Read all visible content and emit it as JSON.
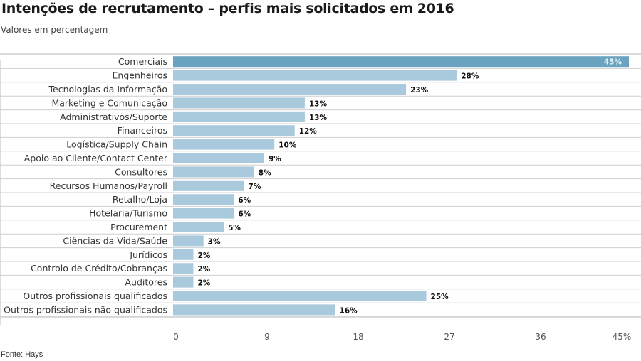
{
  "chart_data": {
    "type": "bar",
    "orientation": "horizontal",
    "title": "Intenções de recrutamento – perfis mais solicitados em 2016",
    "subtitle": "Valores em percentagem",
    "source": "Fonte: Hays",
    "xlabel": "",
    "ylabel": "",
    "xlim": [
      0,
      45
    ],
    "x_ticks": [
      0,
      9,
      18,
      27,
      36,
      45
    ],
    "x_tick_labels": [
      "0",
      "9",
      "18",
      "27",
      "36",
      "45%"
    ],
    "grid": false,
    "categories": [
      "Comerciais",
      "Engenheiros",
      "Tecnologias da Informação",
      "Marketing e Comunicação",
      "Administrativos/Suporte",
      "Financeiros",
      "Logística/Supply Chain",
      "Apoio ao Cliente/Contact Center",
      "Consultores",
      "Recursos Humanos/Payroll",
      "Retalho/Loja",
      "Hotelaria/Turismo",
      "Procurement",
      "Ciências da Vida/Saúde",
      "Jurídicos",
      "Controlo de Crédito/Cobranças",
      "Auditores",
      "Outros profissionais qualificados",
      "Outros profissionais não qualificados"
    ],
    "values": [
      45,
      28,
      23,
      13,
      13,
      12,
      10,
      9,
      8,
      7,
      6,
      6,
      5,
      3,
      2,
      2,
      2,
      25,
      16
    ],
    "value_labels": [
      "45%",
      "28%",
      "23%",
      "13%",
      "13%",
      "12%",
      "10%",
      "9%",
      "8%",
      "7%",
      "6%",
      "6%",
      "5%",
      "3%",
      "2%",
      "2%",
      "2%",
      "25%",
      "16%"
    ],
    "colors": {
      "highlight_bar": "#6aa3bf",
      "bar": "#a9c9dc",
      "row_line": "#cfcfcf"
    },
    "highlight_index": 0
  }
}
